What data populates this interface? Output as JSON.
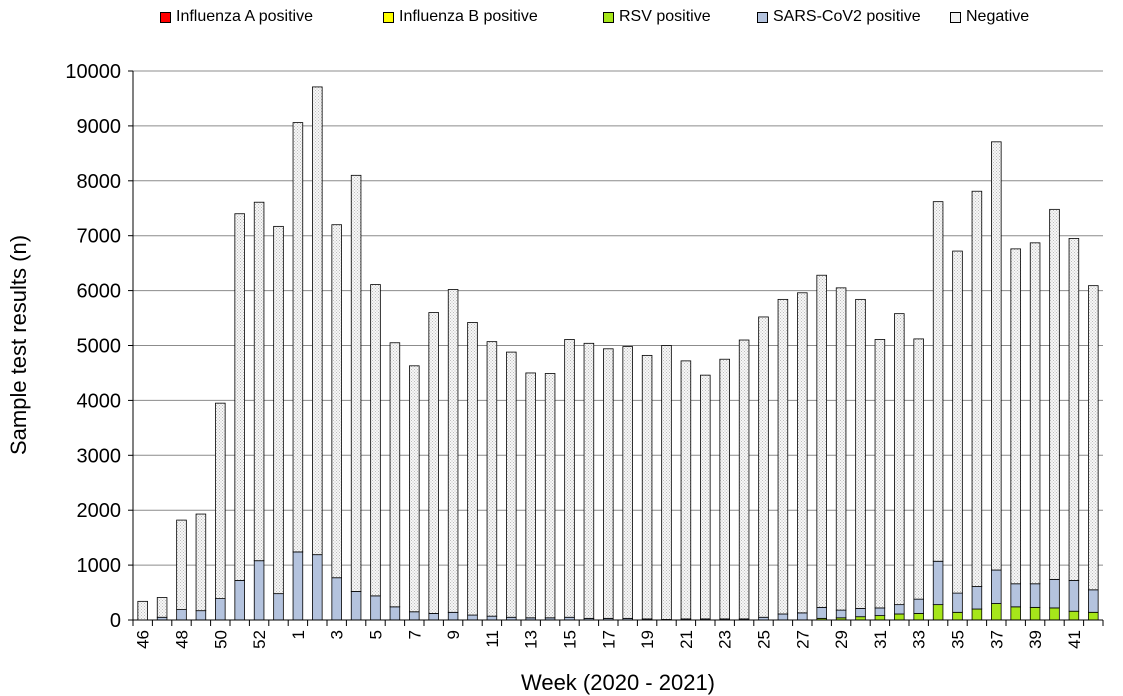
{
  "chart_data": {
    "type": "bar",
    "stacked": true,
    "xlabel": "Week (2020 - 2021)",
    "ylabel": "Sample test results (n)",
    "ylim": [
      0,
      10000
    ],
    "yticks": [
      0,
      1000,
      2000,
      3000,
      4000,
      5000,
      6000,
      7000,
      8000,
      9000,
      10000
    ],
    "grid": true,
    "legend": "top",
    "categories": [
      "46",
      "47",
      "48",
      "49",
      "50",
      "51",
      "52",
      "53",
      "1",
      "2",
      "3",
      "4",
      "5",
      "6",
      "7",
      "8",
      "9",
      "10",
      "11",
      "12",
      "13",
      "14",
      "15",
      "16",
      "17",
      "18",
      "19",
      "20",
      "21",
      "22",
      "23",
      "24",
      "25",
      "26",
      "27",
      "28",
      "29",
      "30",
      "31",
      "32",
      "33",
      "34",
      "35",
      "36",
      "37",
      "38",
      "39",
      "40",
      "41",
      "42"
    ],
    "tick_labels": [
      "46",
      "",
      "48",
      "",
      "50",
      "",
      "52",
      "",
      "1",
      "",
      "3",
      "",
      "5",
      "",
      "7",
      "",
      "9",
      "",
      "11",
      "",
      "13",
      "",
      "15",
      "",
      "17",
      "",
      "19",
      "",
      "21",
      "",
      "23",
      "",
      "25",
      "",
      "27",
      "",
      "29",
      "",
      "31",
      "",
      "33",
      "",
      "35",
      "",
      "37",
      "",
      "39",
      "",
      "41",
      ""
    ],
    "series": [
      {
        "name": "Influenza A positive",
        "color": "#ff0000",
        "values": [
          0,
          0,
          0,
          0,
          0,
          0,
          0,
          0,
          0,
          0,
          0,
          0,
          0,
          0,
          0,
          0,
          0,
          0,
          0,
          0,
          0,
          0,
          0,
          0,
          0,
          0,
          0,
          0,
          0,
          0,
          0,
          0,
          0,
          0,
          0,
          0,
          0,
          0,
          0,
          0,
          0,
          0,
          0,
          0,
          0,
          0,
          0,
          0,
          0,
          0
        ]
      },
      {
        "name": "Influenza B positive",
        "color": "#ffff00",
        "values": [
          0,
          0,
          0,
          0,
          0,
          0,
          0,
          0,
          0,
          0,
          0,
          0,
          0,
          0,
          0,
          0,
          0,
          0,
          0,
          0,
          0,
          0,
          0,
          0,
          0,
          0,
          0,
          0,
          0,
          0,
          0,
          0,
          0,
          0,
          0,
          0,
          0,
          0,
          0,
          0,
          0,
          0,
          0,
          0,
          0,
          0,
          0,
          0,
          0,
          0
        ]
      },
      {
        "name": "RSV positive",
        "color": "#a6e61a",
        "values": [
          0,
          0,
          0,
          0,
          0,
          0,
          0,
          0,
          0,
          0,
          0,
          0,
          0,
          0,
          0,
          0,
          0,
          0,
          0,
          0,
          0,
          0,
          0,
          0,
          0,
          0,
          0,
          0,
          0,
          0,
          0,
          0,
          0,
          0,
          0,
          30,
          40,
          60,
          80,
          110,
          120,
          280,
          140,
          200,
          300,
          240,
          230,
          220,
          160,
          140
        ]
      },
      {
        "name": "SARS-CoV2 positive",
        "color": "#b4c3de",
        "values": [
          0,
          50,
          190,
          170,
          390,
          720,
          1080,
          480,
          1240,
          1190,
          770,
          520,
          440,
          240,
          150,
          120,
          140,
          90,
          70,
          50,
          40,
          40,
          50,
          30,
          30,
          30,
          20,
          10,
          20,
          20,
          20,
          20,
          50,
          110,
          130,
          200,
          140,
          150,
          140,
          170,
          260,
          790,
          350,
          410,
          610,
          420,
          430,
          520,
          560,
          410
        ]
      },
      {
        "name": "Negative",
        "color": "#f2f2f2",
        "values": [
          340,
          360,
          1630,
          1760,
          3560,
          6680,
          6530,
          6690,
          7820,
          8520,
          6430,
          7580,
          5670,
          4810,
          4480,
          5480,
          5880,
          5330,
          5000,
          4830,
          4460,
          4450,
          5060,
          5010,
          4910,
          4950,
          4800,
          4990,
          4700,
          4440,
          4730,
          5080,
          5470,
          5730,
          5830,
          6050,
          5870,
          5630,
          4890,
          5300,
          4740,
          6550,
          6230,
          7200,
          7800,
          6100,
          6210,
          6740,
          6230,
          5540
        ]
      }
    ]
  }
}
